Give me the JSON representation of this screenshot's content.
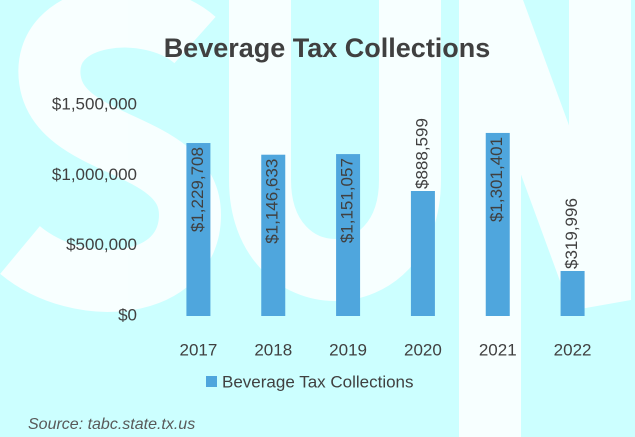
{
  "chart_data": {
    "type": "bar",
    "title": "Beverage Tax Collections",
    "categories": [
      "2017",
      "2018",
      "2019",
      "2020",
      "2021",
      "2022"
    ],
    "series": [
      {
        "name": "Beverage Tax Collections",
        "color": "#4fa6dd",
        "values": [
          1229708,
          1146633,
          1151057,
          888599,
          1301401,
          319996
        ],
        "value_labels": [
          "$1,229,708",
          "$1,146,633",
          "$1,151,057",
          "$888,599",
          "$1,301,401",
          "$319,996"
        ]
      }
    ],
    "ylim": [
      0,
      1500000
    ],
    "yticks": [
      {
        "value": 0,
        "label": "$0"
      },
      {
        "value": 500000,
        "label": "$500,000"
      },
      {
        "value": 1000000,
        "label": "$1,000,000"
      },
      {
        "value": 1500000,
        "label": "$1,500,000"
      }
    ],
    "grid": false,
    "legend": "bottom",
    "source": "Source: tabc.state.tx.us"
  }
}
